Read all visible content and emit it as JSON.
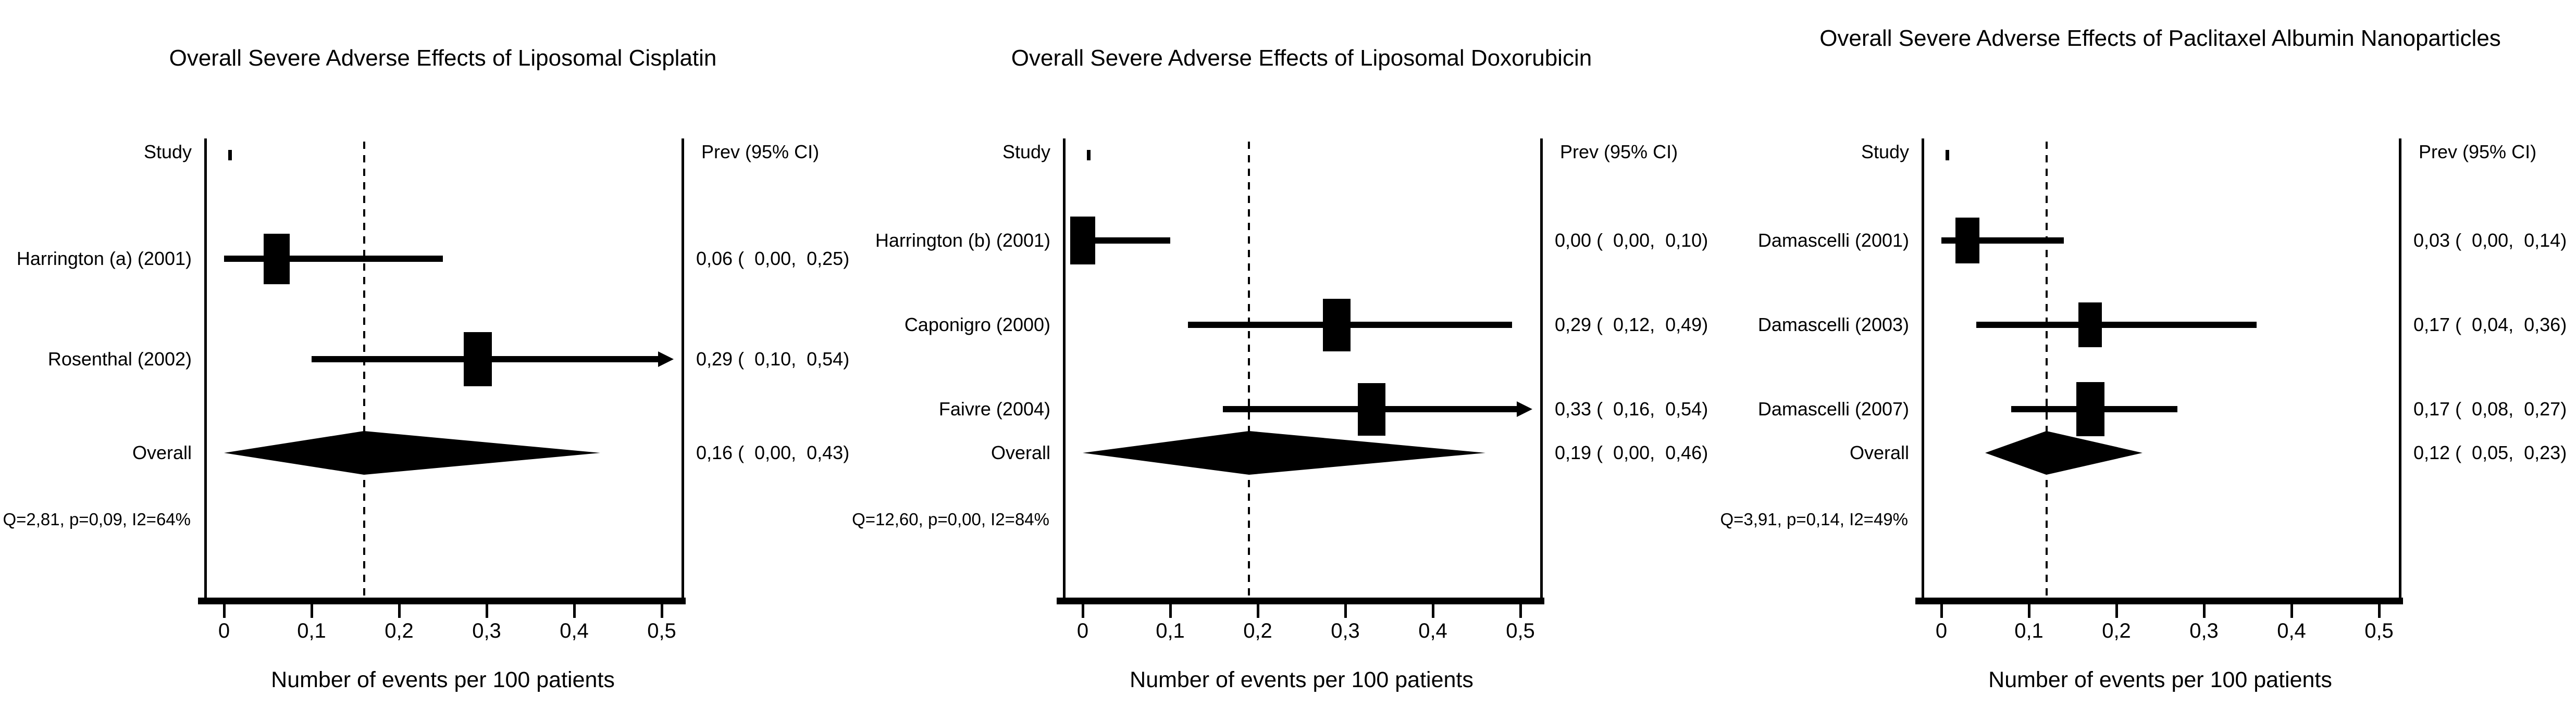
{
  "figure": {
    "background": "#ffffff",
    "ink_color": "#000000",
    "column_headers": {
      "study": "Study",
      "prev": "Prev (95% CI)"
    },
    "overall_label": "Overall",
    "xlabel": "Number of events per 100 patients",
    "x_tick_labels": [
      "0",
      "0,1",
      "0,2",
      "0,3",
      "0,4",
      "0,5"
    ],
    "x_tick_values": [
      0,
      0.1,
      0.2,
      0.3,
      0.4,
      0.5
    ]
  },
  "chart_data": [
    {
      "type": "forest",
      "title": "Overall Severe Adverse Effects of Liposomal Cisplatin",
      "title_y": 112,
      "xlabel": "Number of events per 100 patients",
      "xlim": [
        0,
        0.5
      ],
      "x_tick_labels": [
        "0",
        "0,1",
        "0,2",
        "0,3",
        "0,4",
        "0,5"
      ],
      "pooled_line": 0.16,
      "studies": [
        {
          "label": "Harrington (a) (2001)",
          "est": 0.06,
          "ci_low": 0.0,
          "ci_high": 0.25,
          "ci_text": "0,06 (  0,00,  0,25)",
          "weight": 0.93,
          "arrow": false
        },
        {
          "label": "Rosenthal (2002)",
          "est": 0.29,
          "ci_low": 0.1,
          "ci_high": 0.54,
          "ci_text": "0,29 (  0,10,  0,54)",
          "weight": 1.0,
          "arrow": true
        }
      ],
      "overall": {
        "est": 0.16,
        "ci_low": 0.0,
        "ci_high": 0.43,
        "ci_text": "0,16 (  0,00,  0,43)"
      },
      "heterogeneity": "Q=2,81, p=0,09, I2=64%"
    },
    {
      "type": "forest",
      "title": "Overall Severe Adverse Effects of Liposomal Doxorubicin",
      "title_y": 112,
      "xlabel": "Number of events per 100 patients",
      "xlim": [
        0,
        0.5
      ],
      "x_tick_labels": [
        "0",
        "0,1",
        "0,2",
        "0,3",
        "0,4",
        "0,5"
      ],
      "pooled_line": 0.19,
      "studies": [
        {
          "label": "Harrington (b) (2001)",
          "est": 0.0,
          "ci_low": 0.0,
          "ci_high": 0.1,
          "ci_text": "0,00 (  0,00,  0,10)",
          "weight": 0.88,
          "arrow": false
        },
        {
          "label": "Caponigro (2000)",
          "est": 0.29,
          "ci_low": 0.12,
          "ci_high": 0.49,
          "ci_text": "0,29 (  0,12,  0,49)",
          "weight": 0.97,
          "arrow": false
        },
        {
          "label": "Faivre (2004)",
          "est": 0.33,
          "ci_low": 0.16,
          "ci_high": 0.54,
          "ci_text": "0,33 (  0,16,  0,54)",
          "weight": 0.97,
          "arrow": true
        }
      ],
      "overall": {
        "est": 0.19,
        "ci_low": 0.0,
        "ci_high": 0.46,
        "ci_text": "0,19 (  0,00,  0,46)"
      },
      "heterogeneity": "Q=12,60, p=0,00, I2=84%"
    },
    {
      "type": "forest",
      "title": "Overall Severe Adverse Effects of Paclitaxel Albumin Nanoparticles",
      "title_y": 74,
      "xlabel": "Number of events per 100 patients",
      "xlim": [
        0,
        0.5
      ],
      "x_tick_labels": [
        "0",
        "0,1",
        "0,2",
        "0,3",
        "0,4",
        "0,5"
      ],
      "pooled_line": 0.12,
      "studies": [
        {
          "label": "Damascelli (2001)",
          "est": 0.03,
          "ci_low": 0.0,
          "ci_high": 0.14,
          "ci_text": "0,03 (  0,00,  0,14)",
          "weight": 0.85,
          "arrow": false
        },
        {
          "label": "Damascelli (2003)",
          "est": 0.17,
          "ci_low": 0.04,
          "ci_high": 0.36,
          "ci_text": "0,17 (  0,04,  0,36)",
          "weight": 0.83,
          "arrow": false
        },
        {
          "label": "Damascelli (2007)",
          "est": 0.17,
          "ci_low": 0.08,
          "ci_high": 0.27,
          "ci_text": "0,17 (  0,08,  0,27)",
          "weight": 1.0,
          "arrow": false
        }
      ],
      "overall": {
        "est": 0.12,
        "ci_low": 0.05,
        "ci_high": 0.23,
        "ci_text": "0,12 (  0,05,  0,23)"
      },
      "heterogeneity": "Q=3,91, p=0,14, I2=49%"
    }
  ]
}
